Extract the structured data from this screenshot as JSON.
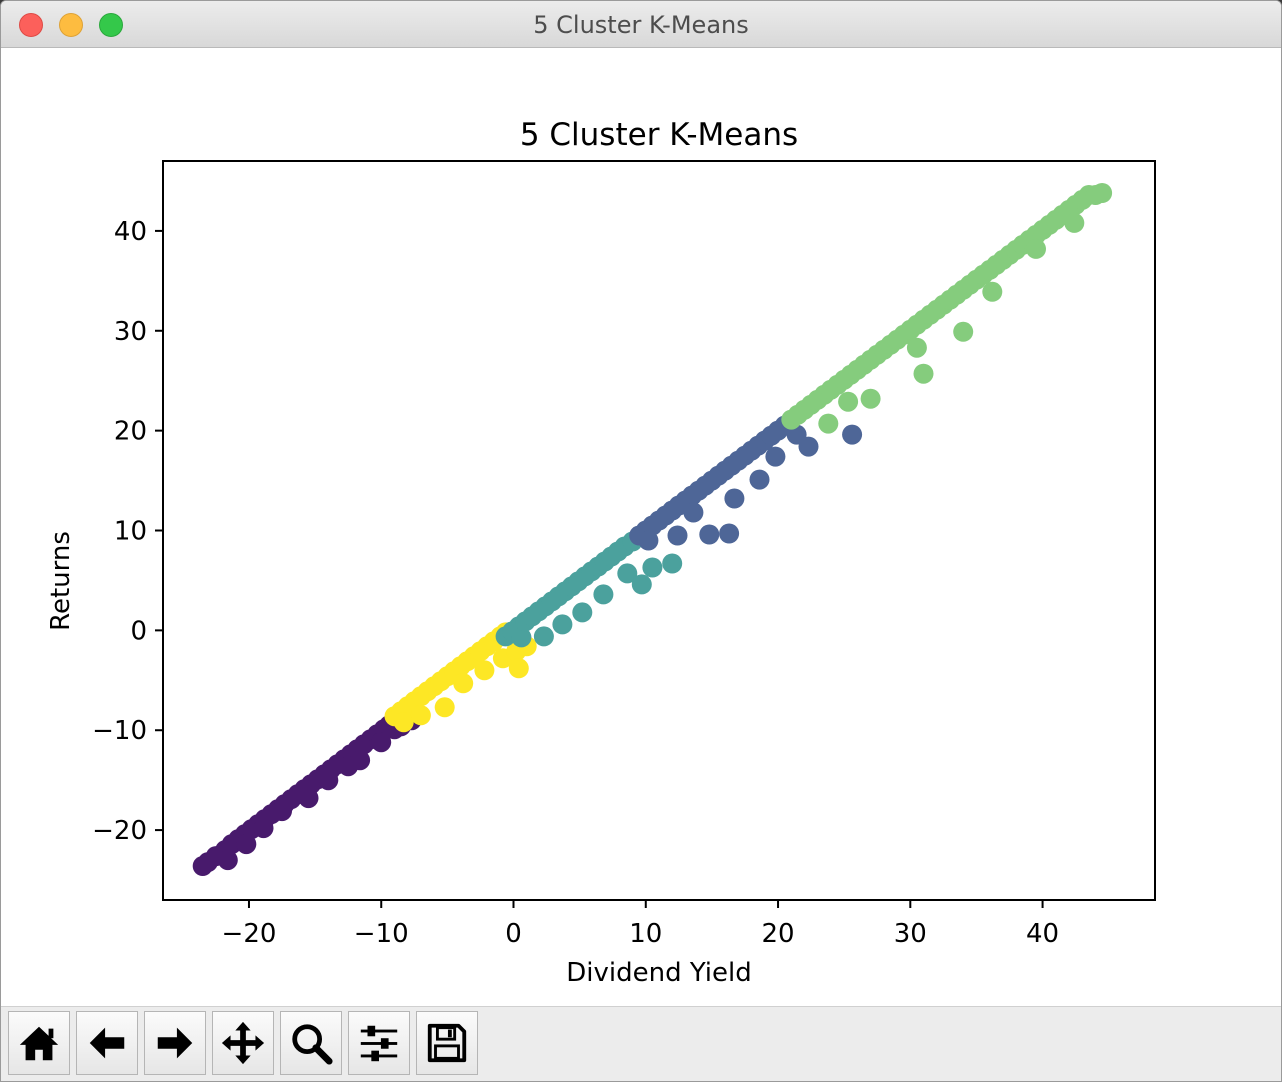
{
  "window": {
    "title": "5 Cluster K-Means"
  },
  "toolbar": {
    "buttons": [
      {
        "name": "home-icon"
      },
      {
        "name": "back-arrow-icon"
      },
      {
        "name": "forward-arrow-icon"
      },
      {
        "name": "pan-move-icon"
      },
      {
        "name": "zoom-magnifier-icon"
      },
      {
        "name": "configure-subplots-icon"
      },
      {
        "name": "save-floppy-icon"
      }
    ]
  },
  "chart_data": {
    "type": "scatter",
    "title": "5 Cluster K-Means",
    "xlabel": "Dividend Yield",
    "ylabel": "Returns",
    "xlim": [
      -26.5,
      48.5
    ],
    "ylim": [
      -27,
      47
    ],
    "xticks": [
      -20,
      -10,
      0,
      10,
      20,
      30,
      40
    ],
    "yticks": [
      -20,
      -10,
      0,
      10,
      20,
      30,
      40
    ],
    "xtick_labels": [
      "−20",
      "−10",
      "0",
      "10",
      "20",
      "30",
      "40"
    ],
    "ytick_labels": [
      "−20",
      "−10",
      "0",
      "10",
      "20",
      "30",
      "40"
    ],
    "grid": false,
    "series": [
      {
        "color": "#481a6c",
        "points": [
          [
            -23.5,
            -23.6
          ],
          [
            -23.1,
            -23.2
          ],
          [
            -22.5,
            -22.6
          ],
          [
            -21.8,
            -22.0
          ],
          [
            -21.3,
            -21.4
          ],
          [
            -21.6,
            -23.0
          ],
          [
            -20.8,
            -20.9
          ],
          [
            -20.3,
            -20.4
          ],
          [
            -19.8,
            -19.9
          ],
          [
            -20.2,
            -21.4
          ],
          [
            -19.3,
            -19.4
          ],
          [
            -18.8,
            -18.9
          ],
          [
            -18.3,
            -18.4
          ],
          [
            -18.9,
            -19.8
          ],
          [
            -17.8,
            -17.9
          ],
          [
            -17.3,
            -17.4
          ],
          [
            -16.8,
            -16.9
          ],
          [
            -17.5,
            -18.1
          ],
          [
            -16.3,
            -16.4
          ],
          [
            -15.8,
            -15.9
          ],
          [
            -15.3,
            -15.4
          ],
          [
            -15.5,
            -16.8
          ],
          [
            -14.8,
            -14.9
          ],
          [
            -14.3,
            -14.4
          ],
          [
            -13.8,
            -13.9
          ],
          [
            -14.0,
            -15.0
          ],
          [
            -13.3,
            -13.4
          ],
          [
            -12.8,
            -12.9
          ],
          [
            -12.3,
            -12.4
          ],
          [
            -12.5,
            -13.6
          ],
          [
            -11.8,
            -11.9
          ],
          [
            -11.3,
            -11.4
          ],
          [
            -10.8,
            -10.9
          ],
          [
            -11.6,
            -13.0
          ],
          [
            -10.3,
            -10.4
          ],
          [
            -9.8,
            -9.9
          ],
          [
            -9.4,
            -9.5
          ],
          [
            -10.0,
            -11.2
          ],
          [
            -9.0,
            -9.9
          ],
          [
            -8.5,
            -9.6
          ],
          [
            -7.7,
            -9.0
          ]
        ]
      },
      {
        "color": "#fde725",
        "points": [
          [
            -9.0,
            -8.6
          ],
          [
            -8.5,
            -8.1
          ],
          [
            -8.0,
            -7.6
          ],
          [
            -8.3,
            -9.2
          ],
          [
            -7.5,
            -7.1
          ],
          [
            -7.0,
            -6.6
          ],
          [
            -6.5,
            -6.1
          ],
          [
            -7.0,
            -8.5
          ],
          [
            -6.0,
            -5.6
          ],
          [
            -5.5,
            -5.1
          ],
          [
            -5.0,
            -4.6
          ],
          [
            -5.2,
            -7.7
          ],
          [
            -4.5,
            -4.1
          ],
          [
            -4.0,
            -3.6
          ],
          [
            -3.5,
            -3.1
          ],
          [
            -3.8,
            -5.3
          ],
          [
            -3.0,
            -2.6
          ],
          [
            -2.5,
            -2.1
          ],
          [
            -2.0,
            -1.6
          ],
          [
            -2.2,
            -4.0
          ],
          [
            -1.5,
            -1.1
          ],
          [
            -1.0,
            -0.6
          ],
          [
            -0.6,
            -0.2
          ],
          [
            -0.8,
            -2.8
          ],
          [
            0.2,
            -2.1
          ],
          [
            0.4,
            -3.8
          ],
          [
            1.0,
            -1.6
          ]
        ]
      },
      {
        "color": "#4ba19d",
        "points": [
          [
            -0.6,
            -0.6
          ],
          [
            -0.1,
            -0.1
          ],
          [
            0.4,
            0.4
          ],
          [
            0.6,
            -0.7
          ],
          [
            0.9,
            0.9
          ],
          [
            1.4,
            1.4
          ],
          [
            1.9,
            1.9
          ],
          [
            2.3,
            -0.6
          ],
          [
            2.4,
            2.4
          ],
          [
            2.9,
            2.9
          ],
          [
            3.4,
            3.4
          ],
          [
            3.7,
            0.6
          ],
          [
            3.9,
            3.9
          ],
          [
            4.4,
            4.4
          ],
          [
            4.9,
            4.9
          ],
          [
            5.2,
            1.8
          ],
          [
            5.4,
            5.4
          ],
          [
            5.9,
            5.9
          ],
          [
            6.4,
            6.4
          ],
          [
            6.8,
            3.6
          ],
          [
            6.9,
            6.9
          ],
          [
            7.4,
            7.4
          ],
          [
            7.9,
            7.9
          ],
          [
            8.6,
            5.7
          ],
          [
            8.4,
            8.4
          ],
          [
            9.0,
            8.9
          ],
          [
            9.7,
            4.6
          ],
          [
            10.5,
            6.3
          ],
          [
            12.0,
            6.7
          ]
        ]
      },
      {
        "color": "#4e6697",
        "points": [
          [
            9.5,
            9.5
          ],
          [
            10.0,
            10.0
          ],
          [
            10.5,
            10.5
          ],
          [
            11.0,
            11.0
          ],
          [
            11.5,
            11.5
          ],
          [
            12.0,
            12.0
          ],
          [
            12.5,
            12.5
          ],
          [
            13.0,
            13.0
          ],
          [
            13.5,
            13.5
          ],
          [
            14.0,
            14.0
          ],
          [
            14.5,
            14.5
          ],
          [
            15.0,
            15.0
          ],
          [
            15.5,
            15.5
          ],
          [
            16.0,
            16.0
          ],
          [
            16.5,
            16.5
          ],
          [
            17.0,
            17.0
          ],
          [
            17.5,
            17.5
          ],
          [
            18.0,
            18.0
          ],
          [
            18.5,
            18.5
          ],
          [
            19.0,
            19.0
          ],
          [
            19.5,
            19.5
          ],
          [
            20.0,
            20.0
          ],
          [
            20.5,
            20.5
          ],
          [
            10.2,
            9.0
          ],
          [
            12.4,
            9.5
          ],
          [
            14.8,
            9.6
          ],
          [
            13.6,
            11.8
          ],
          [
            16.3,
            9.7
          ],
          [
            16.7,
            13.2
          ],
          [
            18.6,
            15.1
          ],
          [
            19.8,
            17.4
          ],
          [
            21.4,
            19.6
          ],
          [
            22.3,
            18.4
          ],
          [
            25.6,
            19.6
          ]
        ]
      },
      {
        "color": "#85cc7d",
        "points": [
          [
            21.0,
            21.1
          ],
          [
            21.5,
            21.6
          ],
          [
            22.0,
            22.1
          ],
          [
            22.5,
            22.6
          ],
          [
            23.0,
            23.1
          ],
          [
            23.5,
            23.6
          ],
          [
            24.0,
            24.1
          ],
          [
            24.5,
            24.6
          ],
          [
            25.0,
            25.1
          ],
          [
            25.5,
            25.6
          ],
          [
            26.0,
            26.1
          ],
          [
            26.5,
            26.6
          ],
          [
            27.0,
            27.1
          ],
          [
            27.5,
            27.6
          ],
          [
            28.0,
            28.1
          ],
          [
            28.5,
            28.6
          ],
          [
            29.0,
            29.1
          ],
          [
            29.5,
            29.6
          ],
          [
            30.0,
            30.1
          ],
          [
            30.5,
            30.6
          ],
          [
            31.0,
            31.1
          ],
          [
            31.5,
            31.6
          ],
          [
            32.0,
            32.1
          ],
          [
            32.5,
            32.6
          ],
          [
            33.0,
            33.1
          ],
          [
            33.5,
            33.6
          ],
          [
            34.0,
            34.1
          ],
          [
            34.5,
            34.6
          ],
          [
            35.0,
            35.1
          ],
          [
            35.5,
            35.6
          ],
          [
            36.0,
            36.1
          ],
          [
            36.5,
            36.6
          ],
          [
            37.0,
            37.1
          ],
          [
            37.5,
            37.6
          ],
          [
            38.0,
            38.1
          ],
          [
            38.5,
            38.6
          ],
          [
            39.0,
            39.1
          ],
          [
            39.5,
            39.6
          ],
          [
            40.0,
            40.1
          ],
          [
            40.5,
            40.6
          ],
          [
            41.0,
            41.1
          ],
          [
            41.5,
            41.6
          ],
          [
            42.0,
            42.1
          ],
          [
            42.5,
            42.6
          ],
          [
            43.0,
            43.1
          ],
          [
            43.5,
            43.6
          ],
          [
            44.0,
            43.6
          ],
          [
            44.5,
            43.8
          ],
          [
            27.0,
            23.2
          ],
          [
            31.0,
            25.7
          ],
          [
            30.5,
            28.3
          ],
          [
            34.0,
            29.9
          ],
          [
            36.2,
            33.9
          ],
          [
            39.5,
            38.2
          ],
          [
            42.4,
            40.8
          ],
          [
            23.8,
            20.7
          ],
          [
            25.3,
            22.9
          ]
        ]
      }
    ]
  }
}
